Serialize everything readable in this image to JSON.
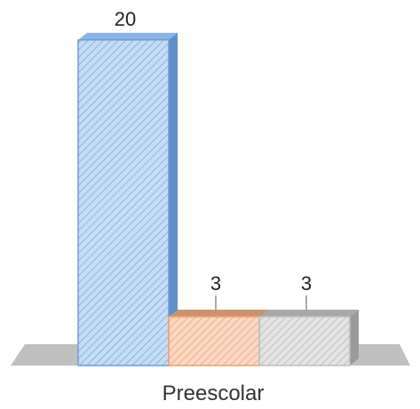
{
  "chart_data": {
    "type": "bar",
    "style": "3d",
    "categories": [
      "Preescolar"
    ],
    "series": [
      {
        "values": [
          20
        ],
        "color": "#c6ddf6",
        "edge": "#6f9fd6",
        "top": "#8ab3e6",
        "side": "#5e8fcc",
        "hatch": "#7ea7d8"
      },
      {
        "values": [
          3
        ],
        "color": "#fbd9c4",
        "edge": "#ef9f72",
        "top": "#c99472",
        "side": "#bb7d57",
        "hatch": "#f0a070"
      },
      {
        "values": [
          3
        ],
        "color": "#e4e4e4",
        "edge": "#bdbdbd",
        "top": "#a9a9a9",
        "side": "#9a9a9a",
        "hatch": "#b5b5b5"
      }
    ],
    "data_labels": [
      "20",
      "3",
      "3"
    ],
    "ylim": [
      0,
      20
    ],
    "grid": false,
    "legend": "none",
    "floor_color": "#c0c0c0"
  }
}
